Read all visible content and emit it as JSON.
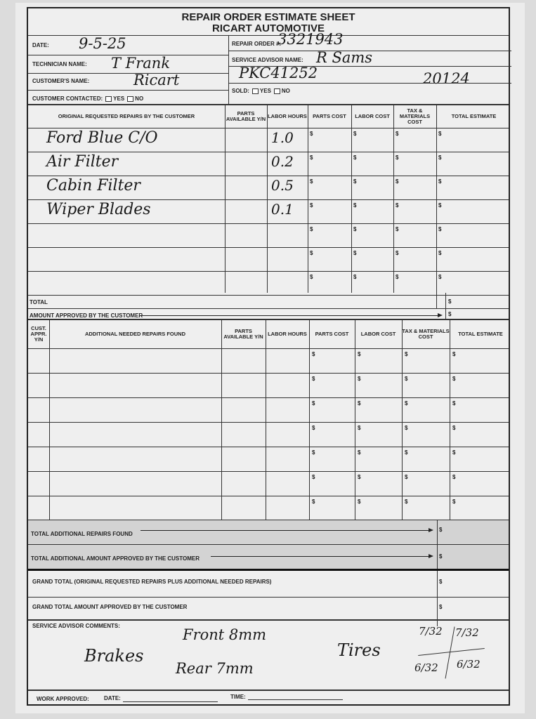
{
  "header": {
    "title": "REPAIR ORDER ESTIMATE SHEET",
    "company": "RICART AUTOMOTIVE"
  },
  "info": {
    "date_label": "DATE:",
    "date_value": "9-5-25",
    "technician_label": "TECHNICIAN NAME:",
    "technician_value": "T Frank",
    "customer_label": "CUSTOMER'S NAME:",
    "customer_value": "Ricart",
    "contacted_label": "CUSTOMER CONTACTED:",
    "yes_label": "YES",
    "no_label": "NO",
    "repair_order_label": "REPAIR ORDER #:",
    "repair_order_value": "3321943",
    "advisor_label": "SERVICE ADVISOR NAME:",
    "advisor_value": "R Sams",
    "vehicle_value": "PKC41252",
    "mileage_value": "20124",
    "sold_label": "SOLD:"
  },
  "table1": {
    "headers": [
      "ORIGINAL REQUESTED REPAIRS BY THE CUSTOMER",
      "PARTS AVAILABLE Y/N",
      "LABOR HOURS",
      "PARTS COST",
      "LABOR COST",
      "TAX & MATERIALS COST",
      "TOTAL ESTIMATE"
    ],
    "rows": [
      {
        "repair": "Ford Blue C/O",
        "hours": "1.0"
      },
      {
        "repair": "Air Filter",
        "hours": "0.2"
      },
      {
        "repair": "Cabin Filter",
        "hours": "0.5"
      },
      {
        "repair": "Wiper Blades",
        "hours": "0.1"
      },
      {
        "repair": "",
        "hours": ""
      },
      {
        "repair": "",
        "hours": ""
      },
      {
        "repair": "",
        "hours": ""
      }
    ],
    "currency": "$",
    "total_label": "TOTAL",
    "approved_label": "AMOUNT APPROVED BY THE CUSTOMER"
  },
  "table2": {
    "headers": [
      "CUST. APPR. Y/N",
      "ADDITIONAL NEEDED REPAIRS FOUND",
      "PARTS AVAILABLE Y/N",
      "LABOR HOURS",
      "PARTS COST",
      "LABOR COST",
      "TAX & MATERIALS COST",
      "TOTAL ESTIMATE"
    ],
    "row_count": 7,
    "total_found_label": "TOTAL ADDITIONAL REPAIRS FOUND",
    "total_approved_label": "TOTAL ADDITIONAL AMOUNT APPROVED BY THE CUSTOMER"
  },
  "grand": {
    "grand_total_label": "GRAND TOTAL (Original requested repairs plus additional needed repairs)",
    "grand_approved_label": "GRAND TOTAL AMOUNT APPROVED BY THE CUSTOMER"
  },
  "comments": {
    "label": "SERVICE ADVISOR COMMENTS:",
    "brakes": "Brakes",
    "front": "Front 8mm",
    "rear": "Rear 7mm",
    "tires": "Tires",
    "tire_fl": "7/32",
    "tire_fr": "7/32",
    "tire_rl": "6/32",
    "tire_rr": "6/32"
  },
  "footer": {
    "work_approved_label": "WORK APPROVED:",
    "date_label": "DATE:",
    "time_label": "TIME:"
  }
}
